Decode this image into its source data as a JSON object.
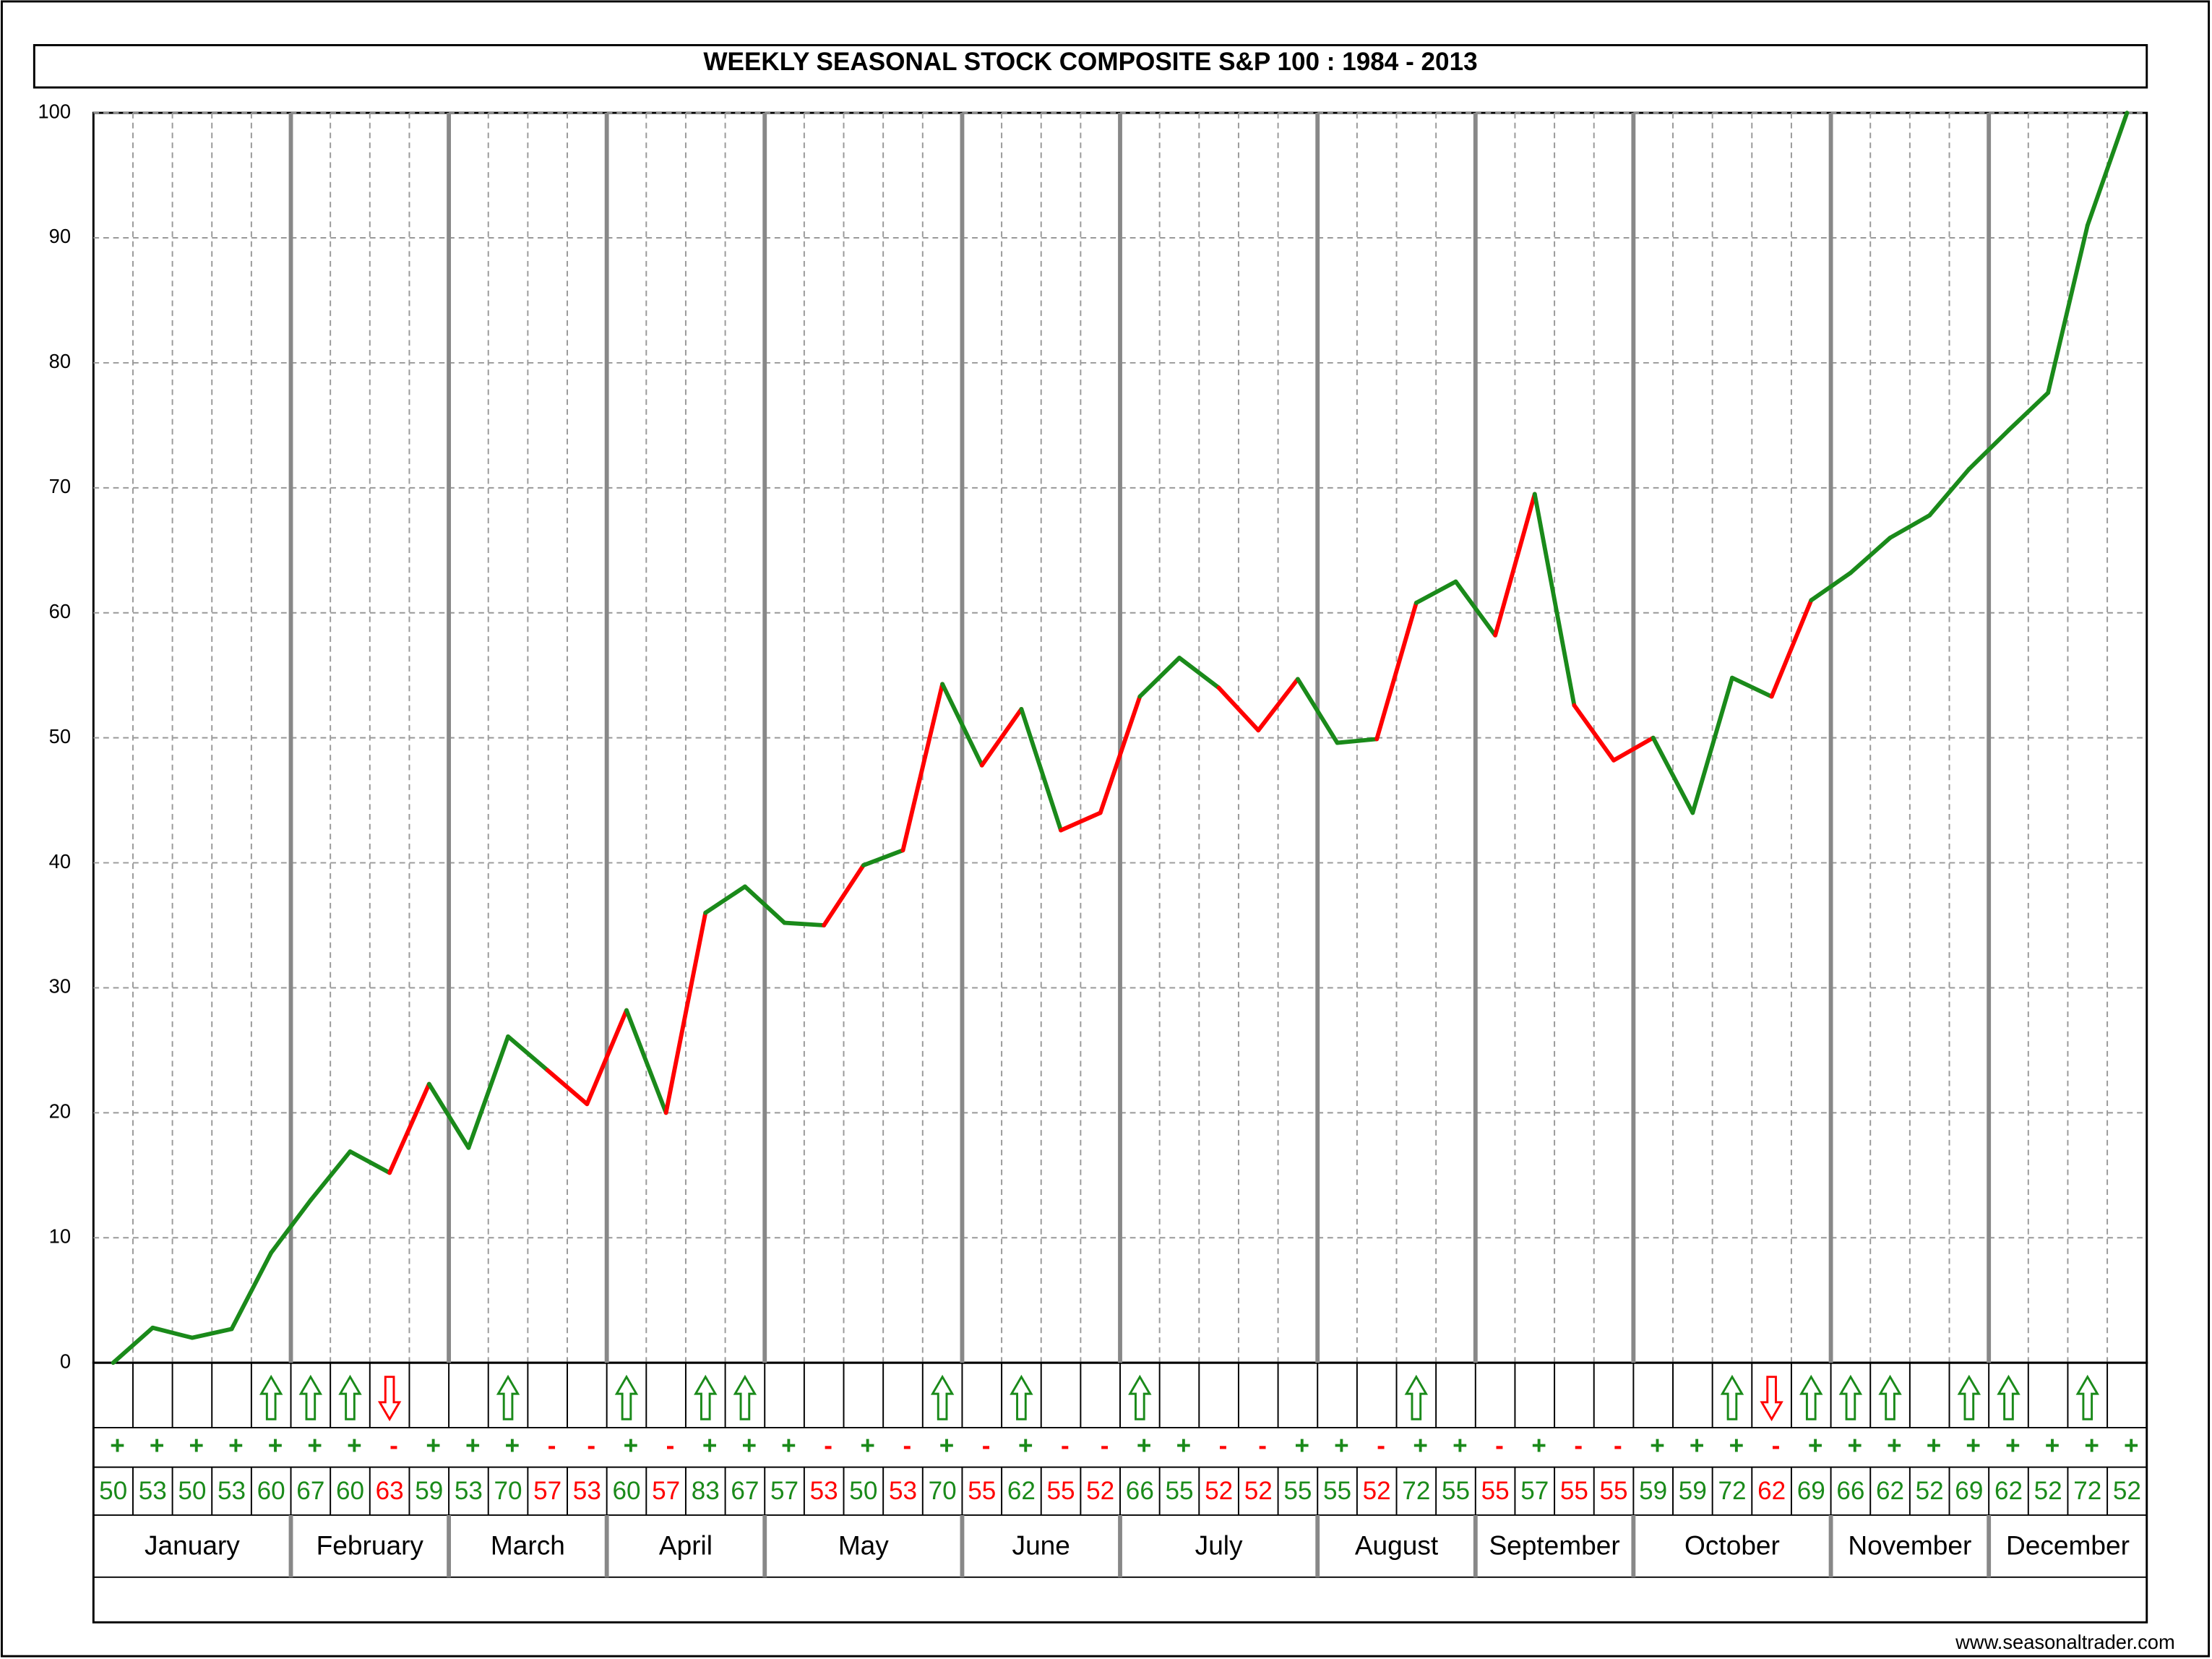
{
  "chart_data": {
    "type": "line",
    "title": "WEEKLY SEASONAL STOCK COMPOSITE S&P 100 : 1984 - 2013",
    "source": "www.seasonaltrader.com",
    "ylim": [
      0,
      100
    ],
    "yticks": [
      0,
      10,
      20,
      30,
      40,
      50,
      60,
      70,
      80,
      90,
      100
    ],
    "grid": true,
    "up_color": "#1a8a1a",
    "down_color": "#ff0000",
    "values": [
      0,
      2.8,
      2.0,
      2.7,
      8.8,
      13.0,
      16.9,
      15.2,
      22.3,
      17.2,
      26.1,
      23.4,
      20.7,
      28.2,
      20.0,
      36.0,
      38.1,
      35.2,
      35.0,
      39.8,
      41.0,
      54.3,
      47.8,
      52.3,
      42.6,
      44.0,
      53.3,
      56.4,
      54.0,
      50.6,
      54.7,
      49.6,
      49.9,
      60.8,
      62.5,
      58.2,
      69.5,
      52.6,
      48.2,
      50.0,
      44.0,
      54.8,
      53.3,
      61.0,
      63.2,
      66.0,
      67.8,
      71.5,
      74.6,
      77.6,
      91.0,
      100
    ],
    "signs": [
      "+",
      "+",
      "+",
      "+",
      "+",
      "+",
      "+",
      "-",
      "+",
      "+",
      "+",
      "-",
      "-",
      "+",
      "-",
      "+",
      "+",
      "+",
      "-",
      "+",
      "-",
      "+",
      "-",
      "+",
      "-",
      "-",
      "+",
      "+",
      "-",
      "-",
      "+",
      "+",
      "-",
      "+",
      "+",
      "-",
      "+",
      "-",
      "-",
      "+",
      "+",
      "+",
      "-",
      "+",
      "+",
      "+",
      "+",
      "+",
      "+",
      "+",
      "+",
      "+"
    ],
    "percents": [
      50,
      53,
      50,
      53,
      60,
      67,
      60,
      63,
      59,
      53,
      70,
      57,
      53,
      60,
      57,
      83,
      67,
      57,
      53,
      50,
      53,
      70,
      55,
      62,
      55,
      52,
      66,
      55,
      52,
      52,
      55,
      55,
      52,
      72,
      55,
      55,
      57,
      55,
      55,
      59,
      59,
      72,
      62,
      69,
      66,
      62,
      52,
      69,
      62,
      52,
      72,
      52
    ],
    "arrows": [
      null,
      null,
      null,
      null,
      "up",
      "up",
      "up",
      "down",
      null,
      null,
      "up",
      null,
      null,
      "up",
      null,
      "up",
      "up",
      null,
      null,
      null,
      null,
      "up",
      null,
      "up",
      null,
      null,
      "up",
      null,
      null,
      null,
      null,
      null,
      null,
      "up",
      null,
      null,
      null,
      null,
      null,
      null,
      null,
      "up",
      "down",
      "up",
      "up",
      "up",
      null,
      "up",
      "up",
      null,
      "up",
      null
    ],
    "months": [
      {
        "label": "January",
        "weeks": 5
      },
      {
        "label": "February",
        "weeks": 4
      },
      {
        "label": "March",
        "weeks": 4
      },
      {
        "label": "April",
        "weeks": 4
      },
      {
        "label": "May",
        "weeks": 5
      },
      {
        "label": "June",
        "weeks": 4
      },
      {
        "label": "July",
        "weeks": 5
      },
      {
        "label": "August",
        "weeks": 4
      },
      {
        "label": "September",
        "weeks": 4
      },
      {
        "label": "October",
        "weeks": 5
      },
      {
        "label": "November",
        "weeks": 4
      },
      {
        "label": "December",
        "weeks": 4
      }
    ]
  }
}
